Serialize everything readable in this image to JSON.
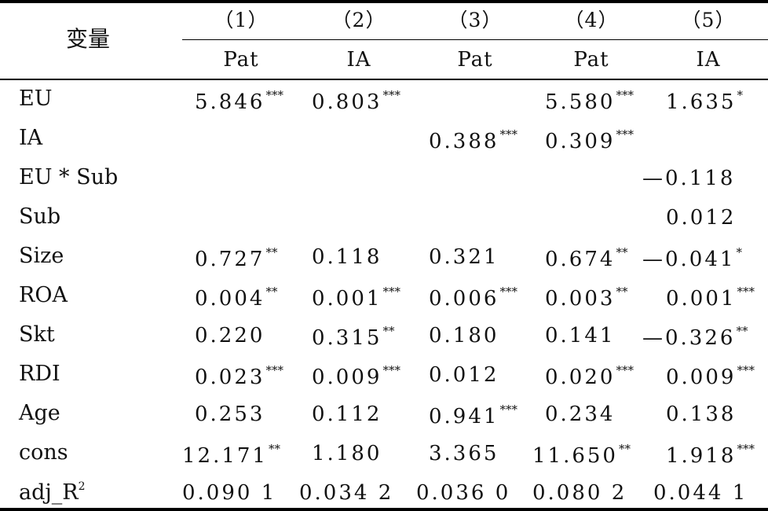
{
  "header": {
    "variable_label": "变量",
    "columns": [
      {
        "num": "（1）",
        "dep": "Pat"
      },
      {
        "num": "（2）",
        "dep": "IA"
      },
      {
        "num": "（3）",
        "dep": "Pat"
      },
      {
        "num": "（4）",
        "dep": "Pat"
      },
      {
        "num": "（5）",
        "dep": "IA"
      }
    ]
  },
  "rows": [
    {
      "label": "EU",
      "cells": [
        {
          "v": "5.846",
          "s": "***"
        },
        {
          "v": "0.803",
          "s": "***"
        },
        {
          "v": "",
          "s": ""
        },
        {
          "v": "5.580",
          "s": "***"
        },
        {
          "v": "1.635",
          "s": "*"
        }
      ]
    },
    {
      "label": "IA",
      "cells": [
        {
          "v": "",
          "s": ""
        },
        {
          "v": "",
          "s": ""
        },
        {
          "v": "0.388",
          "s": "***"
        },
        {
          "v": "0.309",
          "s": "***"
        },
        {
          "v": "",
          "s": ""
        }
      ]
    },
    {
      "label": "EU * Sub",
      "cells": [
        {
          "v": "",
          "s": ""
        },
        {
          "v": "",
          "s": ""
        },
        {
          "v": "",
          "s": ""
        },
        {
          "v": "",
          "s": ""
        },
        {
          "v": "—0.118",
          "s": ""
        }
      ]
    },
    {
      "label": "Sub",
      "cells": [
        {
          "v": "",
          "s": ""
        },
        {
          "v": "",
          "s": ""
        },
        {
          "v": "",
          "s": ""
        },
        {
          "v": "",
          "s": ""
        },
        {
          "v": "0.012",
          "s": ""
        }
      ]
    },
    {
      "label": "Size",
      "cells": [
        {
          "v": "0.727",
          "s": "**"
        },
        {
          "v": "0.118",
          "s": ""
        },
        {
          "v": "0.321",
          "s": ""
        },
        {
          "v": "0.674",
          "s": "**"
        },
        {
          "v": "—0.041",
          "s": "*"
        }
      ]
    },
    {
      "label": "ROA",
      "cells": [
        {
          "v": "0.004",
          "s": "**"
        },
        {
          "v": "0.001",
          "s": "***"
        },
        {
          "v": "0.006",
          "s": "***"
        },
        {
          "v": "0.003",
          "s": "**"
        },
        {
          "v": "0.001",
          "s": "***"
        }
      ]
    },
    {
      "label": "Skt",
      "cells": [
        {
          "v": "0.220",
          "s": ""
        },
        {
          "v": "0.315",
          "s": "**"
        },
        {
          "v": "0.180",
          "s": ""
        },
        {
          "v": "0.141",
          "s": ""
        },
        {
          "v": "—0.326",
          "s": "**"
        }
      ]
    },
    {
      "label": "RDI",
      "cells": [
        {
          "v": "0.023",
          "s": "***"
        },
        {
          "v": "0.009",
          "s": "***"
        },
        {
          "v": "0.012",
          "s": ""
        },
        {
          "v": "0.020",
          "s": "***"
        },
        {
          "v": "0.009",
          "s": "***"
        }
      ]
    },
    {
      "label": "Age",
      "cells": [
        {
          "v": "0.253",
          "s": ""
        },
        {
          "v": "0.112",
          "s": ""
        },
        {
          "v": "0.941",
          "s": "***"
        },
        {
          "v": "0.234",
          "s": ""
        },
        {
          "v": "0.138",
          "s": ""
        }
      ]
    },
    {
      "label": "cons",
      "cells": [
        {
          "v": "12.171",
          "s": "**"
        },
        {
          "v": "1.180",
          "s": ""
        },
        {
          "v": "3.365",
          "s": ""
        },
        {
          "v": "11.650",
          "s": "**"
        },
        {
          "v": "1.918",
          "s": "***"
        }
      ]
    },
    {
      "label": "adj_R",
      "label_sup": "2",
      "cells": [
        {
          "v": "0.090 1",
          "s": ""
        },
        {
          "v": "0.034 2",
          "s": ""
        },
        {
          "v": "0.036 0",
          "s": ""
        },
        {
          "v": "0.080 2",
          "s": ""
        },
        {
          "v": "0.044 1",
          "s": ""
        }
      ]
    }
  ]
}
